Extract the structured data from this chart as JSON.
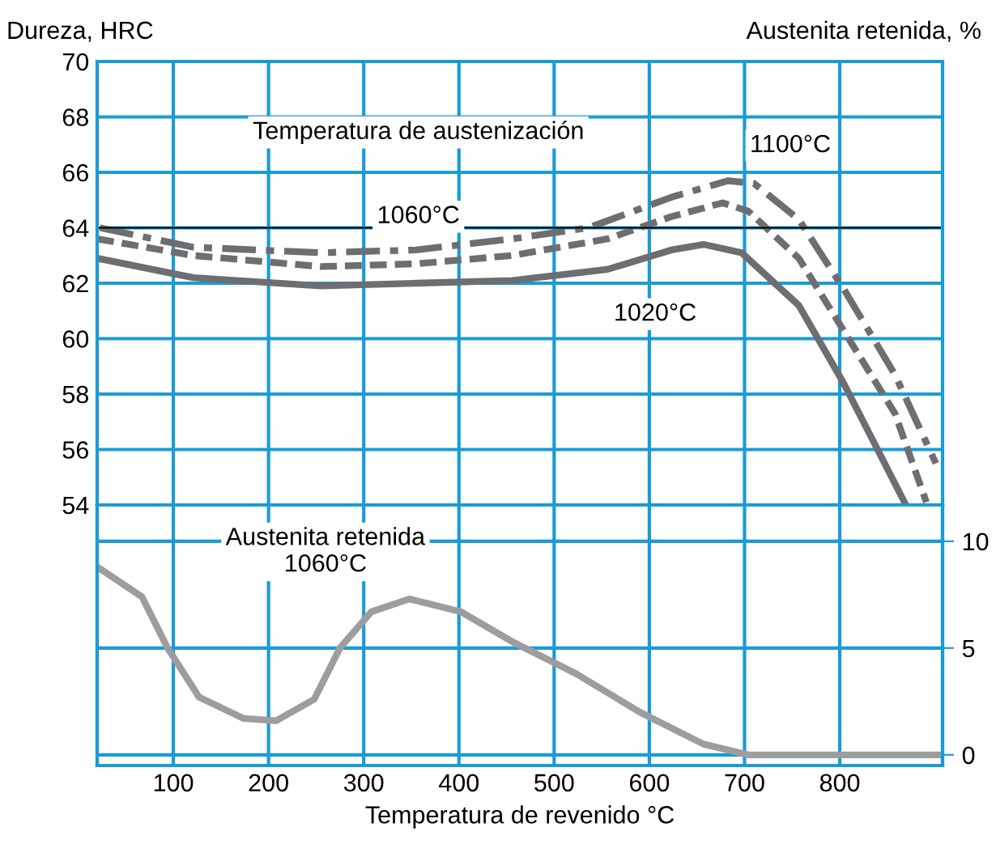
{
  "chart_data": [
    {
      "type": "line",
      "ylabel": "Dureza, HRC",
      "xlim": [
        20,
        908
      ],
      "ylim": [
        54,
        70
      ],
      "yticks": [
        54,
        56,
        58,
        60,
        62,
        64,
        66,
        68,
        70
      ],
      "xticks": [
        100,
        200,
        300,
        400,
        500,
        600,
        700,
        800
      ],
      "grid": true,
      "tick_labels": "y",
      "legend": false,
      "annotations": [
        "Temperatura de austenización",
        "1100°C",
        "1060°C",
        "1020°C"
      ],
      "ref_lines": [
        {
          "axis": "y",
          "value": 64,
          "label": null,
          "color": "#000000"
        }
      ],
      "series": [
        {
          "color": "#6d6e71",
          "line_style": "dashdot",
          "x": [
            23,
            121,
            255,
            355,
            456,
            536,
            623,
            683,
            710,
            757,
            804,
            858,
            901
          ],
          "values": [
            64.0,
            63.3,
            63.1,
            63.2,
            63.6,
            64.0,
            65.1,
            65.7,
            65.6,
            64.3,
            61.8,
            58.7,
            55.5
          ]
        },
        {
          "color": "#6d6e71",
          "line_style": "dashed",
          "x": [
            20,
            121,
            255,
            355,
            456,
            556,
            623,
            677,
            704,
            757,
            804,
            858,
            891
          ],
          "values": [
            63.6,
            63.0,
            62.6,
            62.7,
            63.0,
            63.6,
            64.4,
            64.9,
            64.6,
            62.9,
            60.3,
            57.3,
            54.1
          ]
        },
        {
          "color": "#6d6e71",
          "line_style": "solid",
          "x": [
            20,
            121,
            255,
            355,
            456,
            556,
            623,
            657,
            697,
            757,
            804,
            868
          ],
          "values": [
            62.9,
            62.2,
            61.9,
            62.0,
            62.1,
            62.5,
            63.2,
            63.4,
            63.1,
            61.2,
            58.4,
            54.1
          ]
        }
      ]
    },
    {
      "type": "line",
      "xlabel": "Temperatura de revenido °C",
      "y2label": "Austenita retenida, %",
      "xlim": [
        20,
        908
      ],
      "xticks": [
        100,
        200,
        300,
        400,
        500,
        600,
        700,
        800
      ],
      "y2lim": [
        -0.5,
        11.7
      ],
      "y2ticks": [
        0,
        5,
        10
      ],
      "grid": true,
      "legend": false,
      "annotations": [
        "Austenita retenida\n1060°C"
      ],
      "series": [
        {
          "color": "#9d9d9f",
          "axis": "y2",
          "line_style": "solid",
          "x": [
            20,
            67,
            94,
            127,
            174,
            208,
            248,
            275,
            308,
            348,
            402,
            456,
            523,
            590,
            657,
            704,
            791,
            905
          ],
          "values": [
            8.8,
            7.4,
            5.0,
            2.7,
            1.7,
            1.6,
            2.6,
            5.0,
            6.7,
            7.3,
            6.7,
            5.3,
            3.8,
            2.0,
            0.5,
            0,
            0,
            0
          ]
        }
      ]
    }
  ]
}
